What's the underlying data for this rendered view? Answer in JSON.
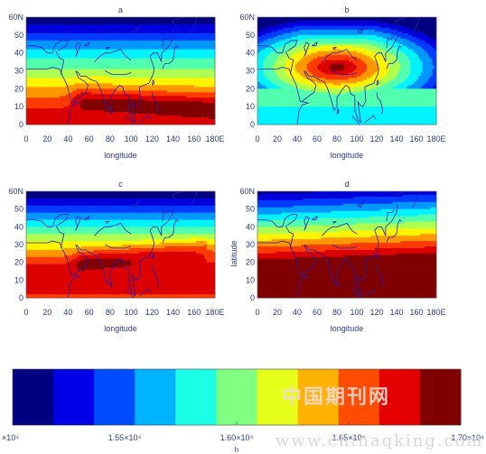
{
  "chart_data": [
    {
      "type": "heatmap",
      "panel": "a",
      "title": "a",
      "xlabel": "longitude",
      "ylabel": "",
      "xlim": [
        0,
        180
      ],
      "ylim": [
        0,
        60
      ],
      "x_tick_labels": [
        "0",
        "20",
        "40",
        "60",
        "80",
        "100",
        "120",
        "140",
        "160",
        "180E"
      ],
      "y_tick_labels": [
        "0",
        "10",
        "20",
        "30",
        "40",
        "50",
        "60N"
      ],
      "field": {
        "lat_max": 30,
        "lat_high": 15,
        "max_core_center_lat": 14,
        "max_core_lon_range": [
          65,
          175
        ],
        "max_core_value": 17000,
        "south_edge_value": 16800,
        "north_edge_value": 15200
      }
    },
    {
      "type": "heatmap",
      "panel": "b",
      "title": "b",
      "xlabel": "longitude",
      "ylabel": "",
      "xlim": [
        0,
        180
      ],
      "ylim": [
        0,
        60
      ],
      "x_tick_labels": [
        "0",
        "20",
        "40",
        "60",
        "80",
        "100",
        "120",
        "140",
        "160",
        "180E"
      ],
      "y_tick_labels": [
        "0",
        "10",
        "20",
        "30",
        "40",
        "50",
        "60N"
      ],
      "field": {
        "max_core_center": [
          80,
          32
        ],
        "max_core_value": 17000,
        "south_edge_value": 15900,
        "north_edge_value": 15100
      }
    },
    {
      "type": "heatmap",
      "panel": "c",
      "title": "c",
      "xlabel": "longitude",
      "ylabel": "",
      "xlim": [
        0,
        180
      ],
      "ylim": [
        0,
        60
      ],
      "x_tick_labels": [
        "0",
        "20",
        "40",
        "60",
        "80",
        "100",
        "120",
        "140",
        "160",
        "180E"
      ],
      "y_tick_labels": [
        "0",
        "10",
        "20",
        "30",
        "40",
        "50",
        "60N"
      ],
      "field": {
        "max_core_center_lat": 23,
        "max_core_lon_range": [
          60,
          170
        ],
        "max_core_value": 17000,
        "south_edge_value": 16800,
        "north_edge_value": 15100
      }
    },
    {
      "type": "heatmap",
      "panel": "d",
      "title": "d",
      "xlabel": "longitude",
      "ylabel": "latitude",
      "xlim": [
        0,
        180
      ],
      "ylim": [
        0,
        60
      ],
      "x_tick_labels": [
        "0",
        "20",
        "40",
        "60",
        "80",
        "100",
        "120",
        "140",
        "160",
        "180E"
      ],
      "y_tick_labels": [
        "0",
        "10",
        "20",
        "30",
        "40",
        "50",
        "60N"
      ],
      "field": {
        "max_core_lat_range": [
          0,
          25
        ],
        "max_core_value": 17000,
        "north_edge_value": 15100
      }
    }
  ],
  "colorbar": {
    "range": [
      15000,
      17000
    ],
    "tick_labels": [
      "×10⁴",
      "1.55×10⁴",
      "1.60×10⁴",
      "1.65×10⁴",
      "1.70×10⁴"
    ],
    "tick_values": [
      15000,
      15500,
      16000,
      16500,
      17000
    ],
    "label": "h",
    "colormap": "jet"
  },
  "watermark": {
    "cjk": "中国期刊网",
    "url": "www.chinaqking.com"
  },
  "colors": {
    "text": "#2a3a8c",
    "coast": "#2020b0",
    "background": "#ffffff"
  }
}
